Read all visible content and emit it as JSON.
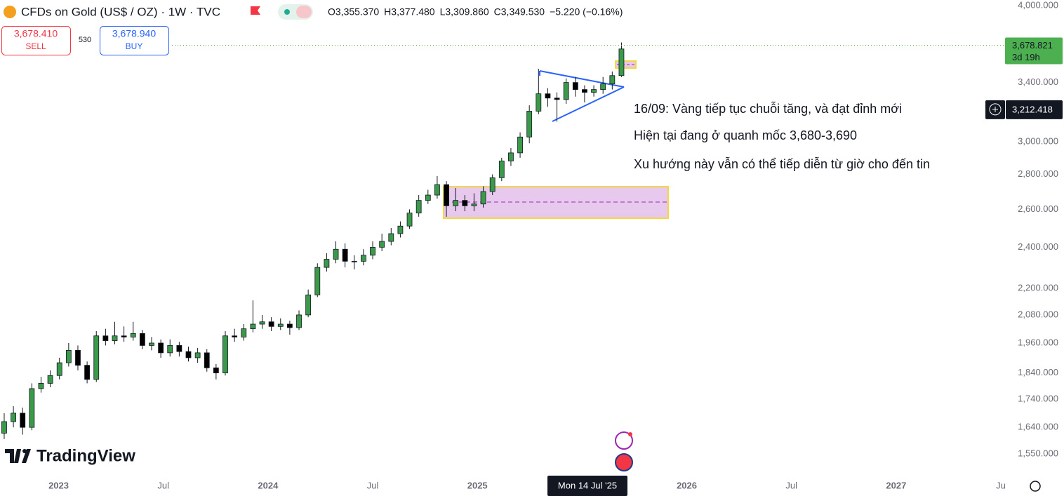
{
  "chart_data": {
    "type": "candlestick",
    "title": "CFDs on Gold (US$ / OZ) · 1W · TVC",
    "legend_values": [
      "O3,355.370",
      "H3,377.480",
      "L3,309.860",
      "C3,349.530",
      "−5.220 (−0.16%)"
    ],
    "sell": {
      "price": "3,678.410",
      "label": "SELL"
    },
    "spread": "530",
    "buy": {
      "price": "3,678.940",
      "label": "BUY"
    },
    "last_price": {
      "value": 3678.821,
      "label": "3,678.821",
      "countdown": "3d 19h",
      "color": "#4caf50"
    },
    "crosshair_price": {
      "value": 3212.418,
      "label": "3,212.418"
    },
    "crosshair_date": "Mon 14 Jul '25",
    "annotations": [
      "16/09: Vàng tiếp tục chuỗi tăng, và đạt đỉnh mới",
      "Hiện tại đang ở quanh mốc 3,680-3,690",
      "Xu hướng này vẫn có thể tiếp diễn từ giờ cho đến tin"
    ],
    "logo": "TradingView",
    "up_color": "#3b9a4a",
    "down_color": "#000000",
    "log_scale": true,
    "grid": false,
    "x": [
      2022.74,
      2022.784,
      2022.828,
      2022.872,
      2022.916,
      2022.96,
      2023.004,
      2023.048,
      2023.092,
      2023.136,
      2023.18,
      2023.224,
      2023.268,
      2023.312,
      2023.356,
      2023.4,
      2023.444,
      2023.488,
      2023.532,
      2023.576,
      2023.62,
      2023.664,
      2023.708,
      2023.752,
      2023.796,
      2023.84,
      2023.884,
      2023.928,
      2023.972,
      2024.016,
      2024.06,
      2024.104,
      2024.148,
      2024.192,
      2024.236,
      2024.28,
      2024.324,
      2024.368,
      2024.412,
      2024.456,
      2024.5,
      2024.544,
      2024.588,
      2024.632,
      2024.676,
      2024.72,
      2024.764,
      2024.808,
      2024.852,
      2024.896,
      2024.94,
      2024.984,
      2025.028,
      2025.072,
      2025.116,
      2025.16,
      2025.204,
      2025.248,
      2025.292,
      2025.336,
      2025.38,
      2025.424,
      2025.468,
      2025.512,
      2025.556,
      2025.6,
      2025.644,
      2025.688
    ],
    "open": [
      1620,
      1660,
      1690,
      1640,
      1780,
      1800,
      1830,
      1880,
      1930,
      1870,
      1815,
      1990,
      1970,
      1990,
      1985,
      2000,
      1950,
      1960,
      1920,
      1950,
      1925,
      1900,
      1920,
      1860,
      1840,
      1990,
      1985,
      2020,
      2040,
      2050,
      2030,
      2040,
      2025,
      2080,
      2170,
      2300,
      2340,
      2390,
      2330,
      2330,
      2360,
      2400,
      2430,
      2470,
      2510,
      2580,
      2650,
      2680,
      2740,
      2620,
      2650,
      2620,
      2630,
      2700,
      2780,
      2880,
      2930,
      3030,
      3200,
      3320,
      3290,
      3280,
      3400,
      3350,
      3330,
      3350,
      3390,
      3450
    ],
    "high": [
      1690,
      1715,
      1710,
      1800,
      1825,
      1850,
      1900,
      1960,
      1950,
      1885,
      2010,
      2020,
      2050,
      2030,
      2050,
      2015,
      1985,
      1975,
      1975,
      1965,
      1945,
      1940,
      1935,
      1875,
      2010,
      2020,
      2040,
      2145,
      2080,
      2070,
      2065,
      2055,
      2100,
      2195,
      2320,
      2370,
      2430,
      2420,
      2360,
      2390,
      2430,
      2470,
      2500,
      2535,
      2600,
      2680,
      2710,
      2790,
      2760,
      2720,
      2680,
      2690,
      2730,
      2800,
      2900,
      2960,
      3060,
      3240,
      3500,
      3360,
      3330,
      3430,
      3440,
      3380,
      3380,
      3440,
      3480,
      3700
    ],
    "low": [
      1600,
      1640,
      1615,
      1630,
      1765,
      1785,
      1815,
      1865,
      1850,
      1800,
      1805,
      1950,
      1955,
      1965,
      1970,
      1935,
      1930,
      1900,
      1905,
      1905,
      1885,
      1880,
      1845,
      1815,
      1830,
      1965,
      1970,
      2005,
      2020,
      2010,
      2015,
      1995,
      2015,
      2070,
      2160,
      2280,
      2320,
      2300,
      2290,
      2310,
      2340,
      2380,
      2410,
      2450,
      2495,
      2560,
      2630,
      2660,
      2560,
      2590,
      2590,
      2590,
      2610,
      2680,
      2760,
      2850,
      2900,
      2990,
      3180,
      3230,
      3130,
      3250,
      3300,
      3260,
      3300,
      3320,
      3350,
      3440
    ],
    "close": [
      1660,
      1690,
      1640,
      1780,
      1800,
      1830,
      1880,
      1930,
      1870,
      1815,
      1990,
      1970,
      1990,
      1985,
      2000,
      1950,
      1960,
      1920,
      1950,
      1925,
      1900,
      1920,
      1860,
      1840,
      1990,
      1985,
      2020,
      2040,
      2050,
      2030,
      2040,
      2025,
      2080,
      2170,
      2300,
      2340,
      2390,
      2330,
      2330,
      2360,
      2400,
      2430,
      2470,
      2510,
      2580,
      2650,
      2680,
      2740,
      2620,
      2650,
      2620,
      2630,
      2700,
      2780,
      2880,
      2930,
      3030,
      3200,
      3320,
      3290,
      3280,
      3400,
      3350,
      3330,
      3350,
      3390,
      3450,
      3650
    ],
    "xlim": [
      2022.72,
      2027.52
    ],
    "xticks": [
      2023,
      {
        "value": 2023.5,
        "label": "Jul"
      },
      2024,
      {
        "value": 2024.5,
        "label": "Jul"
      },
      2025,
      2026,
      {
        "value": 2026.5,
        "label": "Jul"
      },
      2027,
      {
        "value": 2027.5,
        "label": "Ju"
      }
    ],
    "ylim": [
      1483,
      4048
    ],
    "yticks": [
      {
        "value": 1550,
        "label": "1,550.000"
      },
      {
        "value": 1640,
        "label": "1,640.000"
      },
      {
        "value": 1740,
        "label": "1,740.000"
      },
      {
        "value": 1840,
        "label": "1,840.000"
      },
      {
        "value": 1960,
        "label": "1,960.000"
      },
      {
        "value": 2080,
        "label": "2,080.000"
      },
      {
        "value": 2200,
        "label": "2,200.000"
      },
      {
        "value": 2400,
        "label": "2,400.000"
      },
      {
        "value": 2600,
        "label": "2,600.000"
      },
      {
        "value": 2800,
        "label": "2,800.000"
      },
      {
        "value": 3000,
        "label": "3,000.000"
      },
      {
        "value": 3400,
        "label": "3,400.000"
      },
      {
        "value": 4000,
        "label": "4,000.000"
      }
    ]
  }
}
